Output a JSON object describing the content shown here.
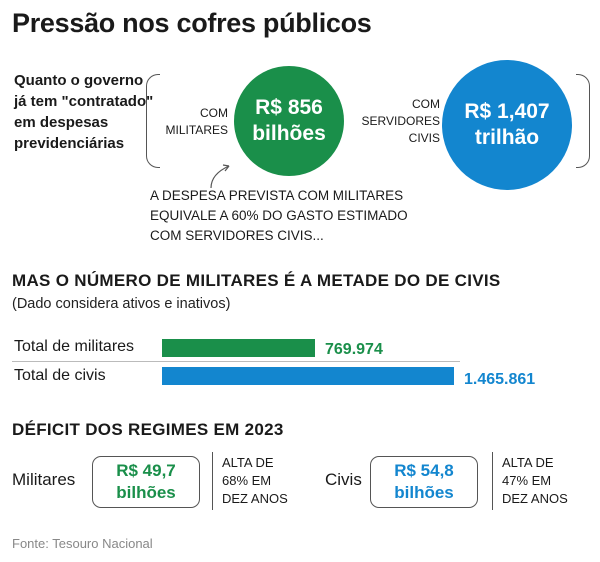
{
  "title": "Pressão nos cofres públicos",
  "question": "Quanto o governo já tem \"contratado\" em despesas previdenciárias",
  "militares_circle": {
    "label_line1": "COM",
    "label_line2": "MILITARES",
    "value_line1": "R$ 856",
    "value_line2": "bilhões"
  },
  "civis_circle": {
    "label_line1": "COM",
    "label_line2": "SERVIDORES",
    "label_line3": "CIVIS",
    "value_line1": "R$ 1,407",
    "value_line2": "trilhão"
  },
  "note_lines": [
    "A DESPESA PREVISTA COM MILITARES",
    "EQUIVALE A 60% DO GASTO ESTIMADO",
    "COM SERVIDORES CIVIS..."
  ],
  "section2_title": "MAS O NÚMERO DE MILITARES É A METADE DO DE CIVIS",
  "section2_subtitle": "(Dado considera ativos e inativos)",
  "section3_title": "DÉFICIT DOS REGIMES EM 2023",
  "deficit": {
    "militares": {
      "name": "Militares",
      "value_line1": "R$ 49,7",
      "value_line2": "bilhões",
      "note_lines": [
        "ALTA DE",
        "68% EM",
        "DEZ ANOS"
      ]
    },
    "civis": {
      "name": "Civis",
      "value_line1": "R$ 54,8",
      "value_line2": "bilhões",
      "note_lines": [
        "ALTA DE",
        "47% EM",
        "DEZ ANOS"
      ]
    }
  },
  "footer": "Fonte: Tesouro Nacional",
  "colors": {
    "green": "#1a8f4a",
    "blue": "#1386cf"
  },
  "chart_data": {
    "type": "bar",
    "orientation": "horizontal",
    "categories": [
      "Total de militares",
      "Total de civis"
    ],
    "values": [
      769974,
      1465861
    ],
    "value_labels": [
      "769.974",
      "1.465.861"
    ],
    "colors": [
      "#1a8f4a",
      "#1386cf"
    ],
    "title": "MAS O NÚMERO DE MILITARES É A METADE DO DE CIVIS",
    "subtitle": "(Dado considera ativos e inativos)",
    "xlabel": "",
    "ylabel": ""
  }
}
